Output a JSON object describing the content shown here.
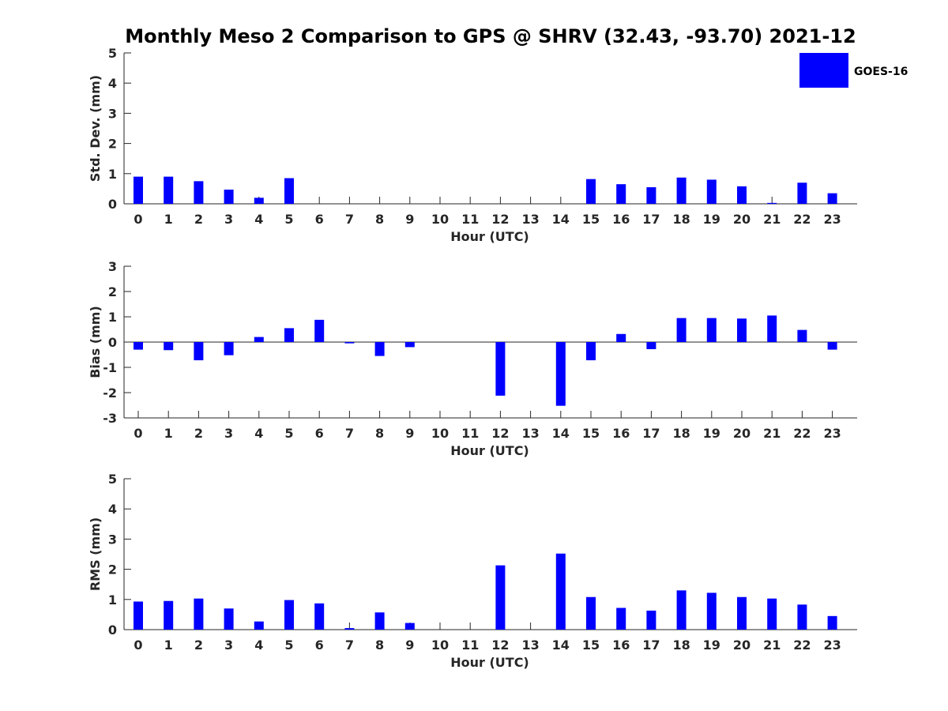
{
  "title": "Monthly Meso 2 Comparison to GPS @ SHRV (32.43, -93.70) 2021-12",
  "legend": {
    "label": "GOES-16",
    "color": "#0000ff"
  },
  "colors": {
    "bar": "#0000ff",
    "axis": "#262626"
  },
  "chart_data": [
    {
      "type": "bar",
      "categories": [
        "0",
        "1",
        "2",
        "3",
        "4",
        "5",
        "6",
        "7",
        "8",
        "9",
        "10",
        "11",
        "12",
        "13",
        "14",
        "15",
        "16",
        "17",
        "18",
        "19",
        "20",
        "21",
        "22",
        "23"
      ],
      "series": [
        {
          "name": "GOES-16",
          "values": [
            0.9,
            0.9,
            0.75,
            0.47,
            0.2,
            0.85,
            null,
            null,
            null,
            null,
            null,
            null,
            null,
            null,
            null,
            0.82,
            0.65,
            0.55,
            0.87,
            0.8,
            0.58,
            0.03,
            0.7,
            0.35
          ]
        }
      ],
      "xlabel": "Hour (UTC)",
      "ylabel": "Std. Dev. (mm)",
      "ylim": [
        0,
        5
      ],
      "yticks": [
        "0",
        "1",
        "2",
        "3",
        "4",
        "5"
      ],
      "legend_position": "top-right",
      "grid": false
    },
    {
      "type": "bar",
      "categories": [
        "0",
        "1",
        "2",
        "3",
        "4",
        "5",
        "6",
        "7",
        "8",
        "9",
        "10",
        "11",
        "12",
        "13",
        "14",
        "15",
        "16",
        "17",
        "18",
        "19",
        "20",
        "21",
        "22",
        "23"
      ],
      "series": [
        {
          "name": "GOES-16",
          "values": [
            -0.3,
            -0.32,
            -0.72,
            -0.52,
            0.2,
            0.55,
            0.88,
            -0.05,
            -0.55,
            -0.2,
            null,
            null,
            -2.12,
            null,
            -2.52,
            -0.72,
            0.32,
            -0.28,
            0.95,
            0.95,
            0.93,
            1.05,
            0.48,
            -0.3
          ]
        }
      ],
      "xlabel": "Hour (UTC)",
      "ylabel": "Bias (mm)",
      "ylim": [
        -3,
        3
      ],
      "yticks": [
        "-3",
        "-2",
        "-1",
        "0",
        "1",
        "2",
        "3"
      ],
      "grid": false
    },
    {
      "type": "bar",
      "categories": [
        "0",
        "1",
        "2",
        "3",
        "4",
        "5",
        "6",
        "7",
        "8",
        "9",
        "10",
        "11",
        "12",
        "13",
        "14",
        "15",
        "16",
        "17",
        "18",
        "19",
        "20",
        "21",
        "22",
        "23"
      ],
      "series": [
        {
          "name": "GOES-16",
          "values": [
            0.93,
            0.95,
            1.03,
            0.7,
            0.27,
            0.98,
            0.87,
            0.05,
            0.57,
            0.22,
            null,
            null,
            2.13,
            null,
            2.52,
            1.08,
            0.72,
            0.63,
            1.3,
            1.22,
            1.08,
            1.03,
            0.83,
            0.45
          ]
        }
      ],
      "xlabel": "Hour (UTC)",
      "ylabel": "RMS (mm)",
      "ylim": [
        0,
        5
      ],
      "yticks": [
        "0",
        "1",
        "2",
        "3",
        "4",
        "5"
      ],
      "grid": false
    }
  ]
}
